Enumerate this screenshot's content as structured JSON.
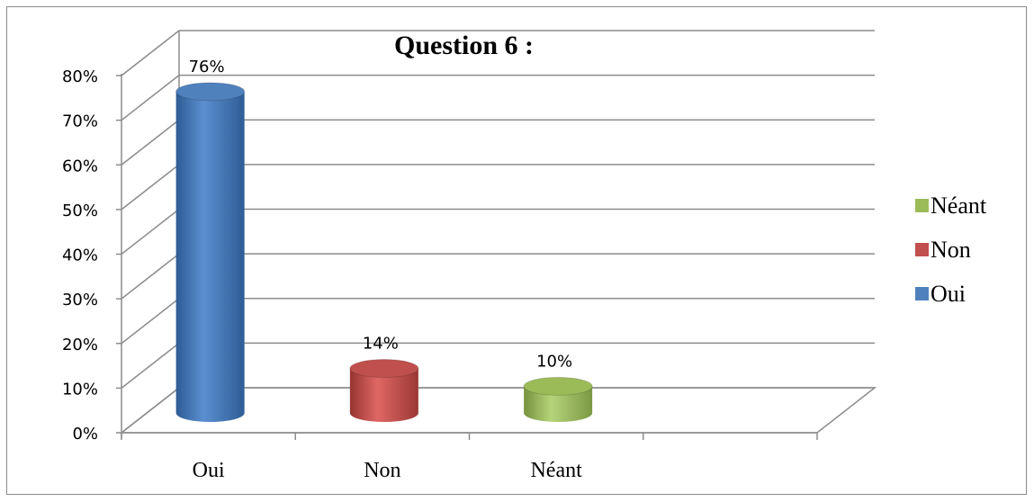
{
  "chart_data": {
    "type": "bar",
    "style": "3d-cylinder",
    "title": "Question 6 :",
    "categories": [
      "Oui",
      "Non",
      "Néant"
    ],
    "values": [
      76,
      14,
      10
    ],
    "data_labels": [
      "76%",
      "14%",
      "10%"
    ],
    "colors": [
      "#4f81bd",
      "#c0504d",
      "#9bbb59"
    ],
    "y_ticks": [
      "0%",
      "10%",
      "20%",
      "30%",
      "40%",
      "50%",
      "60%",
      "70%",
      "80%"
    ],
    "ylim": [
      0,
      80
    ],
    "y_tick_step": 10,
    "grid": true,
    "xlabel": "",
    "ylabel": "",
    "legend": {
      "position": "right",
      "items": [
        {
          "label": "Néant",
          "color": "#9bbb59"
        },
        {
          "label": "Non",
          "color": "#c0504d"
        },
        {
          "label": "Oui",
          "color": "#4f81bd"
        }
      ]
    }
  }
}
